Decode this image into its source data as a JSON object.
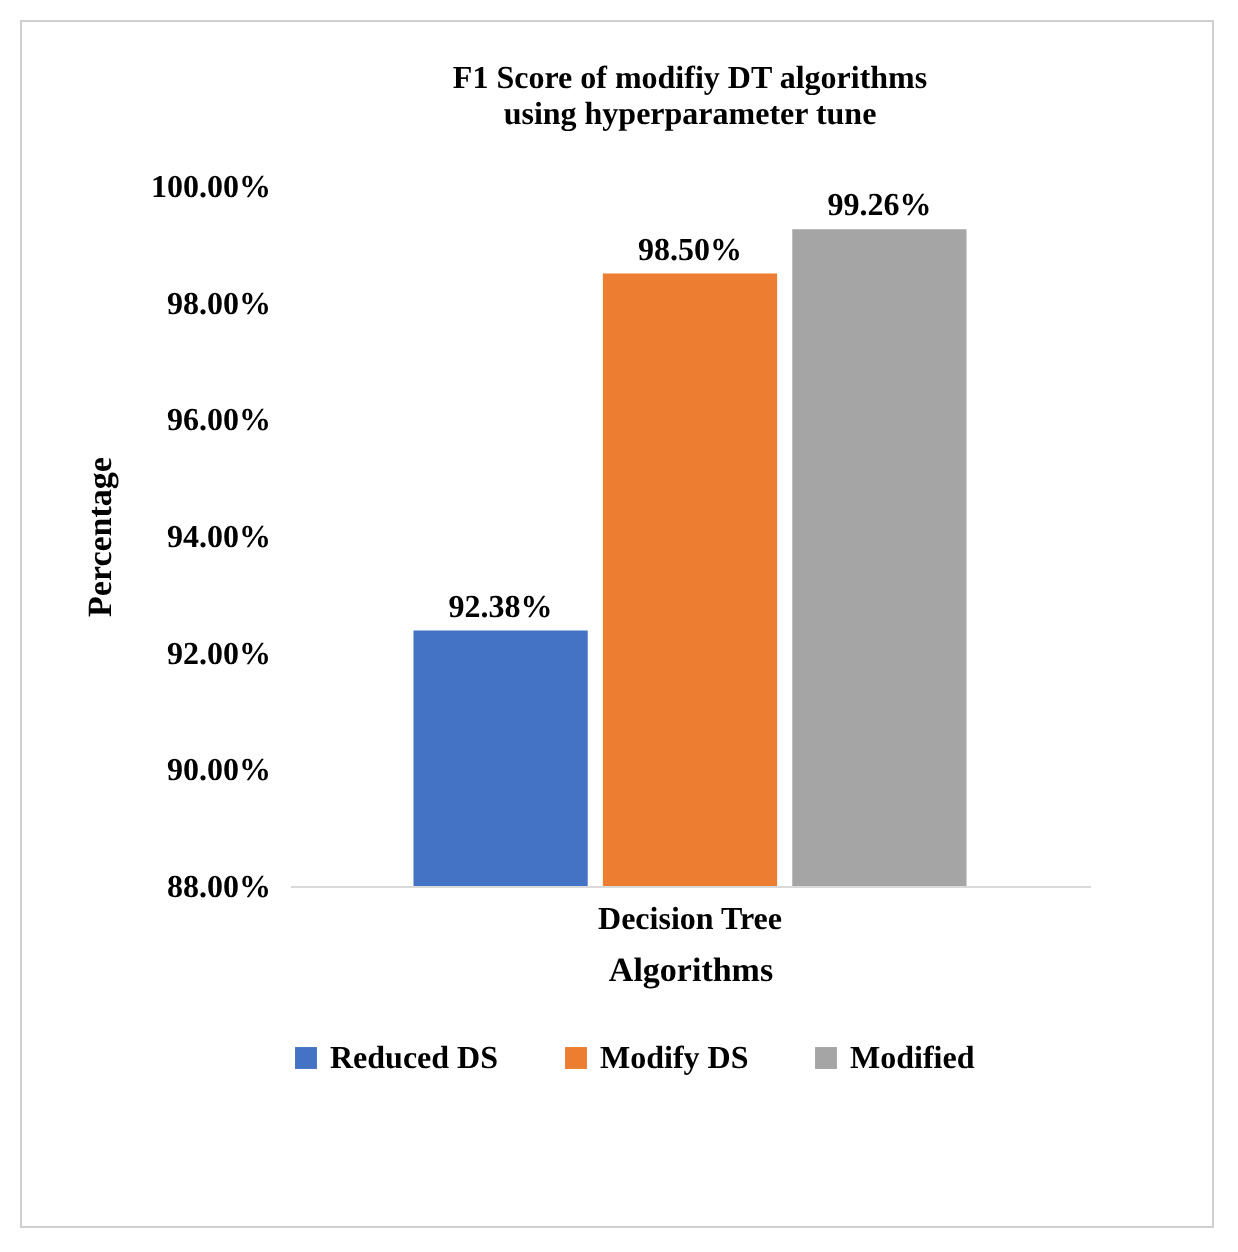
{
  "chart_data": {
    "type": "bar",
    "title": "F1 Score of modifiy DT algorithms\nusing hyperparameter tune",
    "xlabel": "Algorithms",
    "ylabel": "Percentage",
    "categories": [
      "Decision Tree"
    ],
    "series": [
      {
        "name": "Reduced DS",
        "color": "#4472c4",
        "values": [
          92.38
        ],
        "value_labels": [
          "92.38%"
        ]
      },
      {
        "name": "Modify DS",
        "color": "#ed7d31",
        "values": [
          98.5
        ],
        "value_labels": [
          "98.50%"
        ]
      },
      {
        "name": "Modified",
        "color": "#a5a5a5",
        "values": [
          99.26
        ],
        "value_labels": [
          "99.26%"
        ]
      }
    ],
    "ylim": [
      88,
      100
    ],
    "yticks": [
      {
        "value": 88,
        "label": "88.00%"
      },
      {
        "value": 90,
        "label": "90.00%"
      },
      {
        "value": 92,
        "label": "92.00%"
      },
      {
        "value": 94,
        "label": "94.00%"
      },
      {
        "value": 96,
        "label": "96.00%"
      },
      {
        "value": 98,
        "label": "98.00%"
      },
      {
        "value": 100,
        "label": "100.00%"
      }
    ],
    "legend": "bottom"
  }
}
